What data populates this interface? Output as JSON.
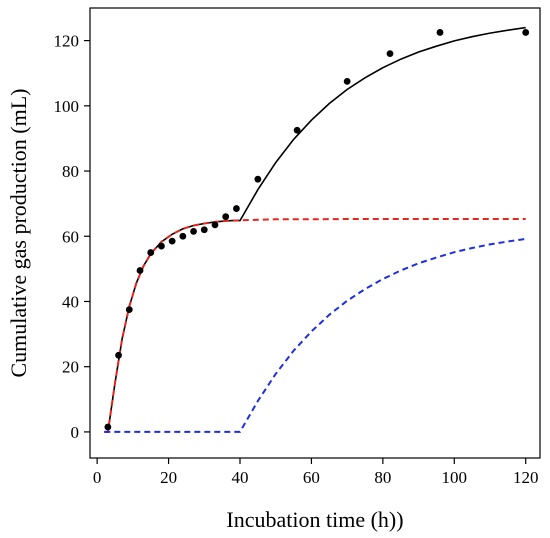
{
  "chart_data": {
    "type": "line",
    "title": "",
    "xlabel": "Incubation time (h))",
    "ylabel": "Cumulative gas production (mL)",
    "xlim": [
      -2,
      124
    ],
    "ylim": [
      -8,
      130
    ],
    "x_ticks": [
      0,
      20,
      40,
      60,
      80,
      100,
      120
    ],
    "y_ticks": [
      0,
      20,
      40,
      60,
      80,
      100,
      120
    ],
    "grid": false,
    "legend": "none",
    "observed": {
      "x": [
        3,
        6,
        9,
        12,
        15,
        18,
        21,
        24,
        27,
        30,
        33,
        36,
        39,
        45,
        56,
        70,
        82,
        96,
        120
      ],
      "y": [
        1.5,
        23.5,
        37.5,
        49.5,
        55,
        57,
        58.5,
        60,
        61.5,
        62,
        63.5,
        66,
        68.5,
        77.5,
        92.5,
        107.5,
        116,
        122.5,
        122.5
      ]
    },
    "series": [
      {
        "style": "solid",
        "color": "#000000",
        "x": [
          2,
          3,
          5,
          7,
          9,
          11,
          13,
          15,
          18,
          21,
          24,
          27,
          30,
          33,
          36,
          38,
          40,
          45,
          50,
          55,
          60,
          65,
          70,
          75,
          80,
          85,
          90,
          95,
          100,
          105,
          110,
          115,
          120
        ],
        "y": [
          0,
          0,
          15,
          28.5,
          38.5,
          45.7,
          50.9,
          54.6,
          58.3,
          60.6,
          62.3,
          63.3,
          63.9,
          64.4,
          64.7,
          64.8,
          64.8,
          74.3,
          82.6,
          89.7,
          95.6,
          100.7,
          105,
          108.6,
          111.7,
          114.3,
          116.5,
          118.3,
          119.9,
          121.2,
          122.3,
          123.2,
          124
        ]
      },
      {
        "style": "dashed",
        "color": "#e8241c",
        "x": [
          2,
          3,
          5,
          7,
          9,
          11,
          13,
          15,
          18,
          21,
          24,
          27,
          30,
          33,
          36,
          40,
          50,
          60,
          70,
          80,
          90,
          100,
          110,
          120
        ],
        "y": [
          0,
          0,
          15,
          28.5,
          38.5,
          45.7,
          50.9,
          54.6,
          58.3,
          60.6,
          62.3,
          63.3,
          63.9,
          64.4,
          64.7,
          64.9,
          65.2,
          65.2,
          65.3,
          65.3,
          65.3,
          65.3,
          65.3,
          65.3
        ]
      },
      {
        "style": "dashed",
        "color": "#1f2fe0",
        "x": [
          2,
          10,
          20,
          30,
          40,
          45,
          50,
          55,
          60,
          65,
          70,
          75,
          80,
          85,
          90,
          95,
          100,
          105,
          110,
          115,
          120
        ],
        "y": [
          0,
          0,
          0,
          0,
          0,
          9.5,
          17.8,
          24.9,
          30.8,
          35.9,
          40.2,
          43.8,
          46.9,
          49.5,
          51.7,
          53.5,
          55.1,
          56.4,
          57.5,
          58.4,
          59.2
        ]
      }
    ]
  }
}
